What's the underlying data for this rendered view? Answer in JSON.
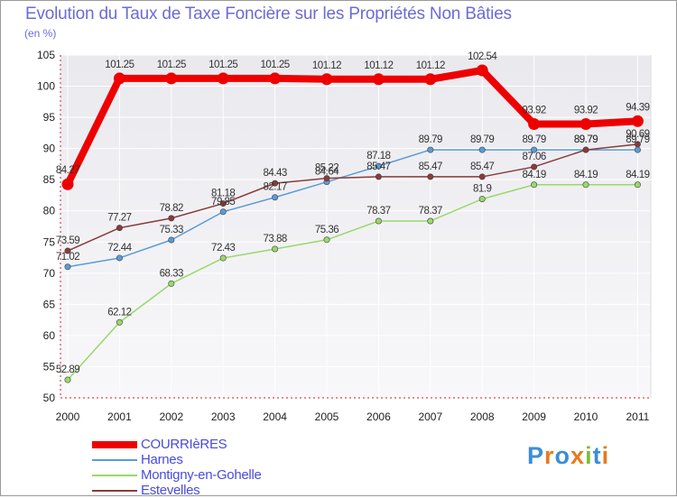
{
  "title": "Evolution du Taux de Taxe Foncière sur les Propriétés Non Bâties",
  "unit": "(en %)",
  "chart_data": {
    "type": "line",
    "title": "Evolution du Taux de Taxe Foncière sur les Propriétés Non Bâties",
    "ylabel": "(en %)",
    "xlabel": "",
    "x": [
      "2000",
      "2001",
      "2002",
      "2003",
      "2004",
      "2005",
      "2006",
      "2007",
      "2008",
      "2009",
      "2010",
      "2011"
    ],
    "ylim": [
      50,
      105
    ],
    "yticks": [
      "50",
      "55",
      "60",
      "65",
      "70",
      "75",
      "80",
      "85",
      "90",
      "95",
      "100",
      "105"
    ],
    "legend_position": "bottom-left",
    "series": [
      {
        "name": "COURRIèRES",
        "color": "#ee0000",
        "values": [
          84.27,
          101.25,
          101.25,
          101.25,
          101.25,
          101.12,
          101.12,
          101.12,
          102.54,
          93.92,
          93.92,
          94.39
        ],
        "labels": [
          "84.27",
          "101.25",
          "101.25",
          "101.25",
          "101.25",
          "101.12",
          "101.12",
          "101.12",
          "102.54",
          "93.92",
          "93.92",
          "94.39"
        ]
      },
      {
        "name": "Harnes",
        "color": "#5b9bd5",
        "values": [
          71.02,
          72.44,
          75.33,
          79.85,
          82.17,
          84.64,
          87.18,
          89.79,
          89.79,
          89.79,
          89.79,
          89.79
        ],
        "labels": [
          "71.02",
          "72.44",
          "75.33",
          "79.85",
          "82.17",
          "84.64",
          "87.18",
          "89.79",
          "89.79",
          "89.79",
          "89.79",
          "89.79"
        ]
      },
      {
        "name": "Montigny-en-Gohelle",
        "color": "#9ad86a",
        "values": [
          52.89,
          62.12,
          68.33,
          72.43,
          73.88,
          75.36,
          78.37,
          78.37,
          81.9,
          84.19,
          84.19,
          84.19
        ],
        "labels": [
          "52.89",
          "62.12",
          "68.33",
          "72.43",
          "73.88",
          "75.36",
          "78.37",
          "78.37",
          "81.9",
          "84.19",
          "84.19",
          "84.19"
        ]
      },
      {
        "name": "Estevelles",
        "color": "#8b3a3a",
        "values": [
          73.59,
          77.27,
          78.82,
          81.18,
          84.43,
          85.22,
          85.47,
          85.47,
          85.47,
          87.06,
          89.79,
          90.69
        ],
        "labels": [
          "73.59",
          "77.27",
          "78.82",
          "81.18",
          "84.43",
          "85.22",
          "85.47",
          "85.47",
          "85.47",
          "87.06",
          "89.79",
          "90.69"
        ]
      }
    ]
  },
  "logo": {
    "text": "Proxiti",
    "letters": [
      "P",
      "r",
      "o",
      "x",
      "i",
      "t",
      "i"
    ],
    "colors": [
      "#3a8fd6",
      "#e97a1c",
      "#3a8fd6",
      "#e97a1c",
      "#7bbf3a",
      "#3a8fd6",
      "#e97a1c"
    ]
  }
}
